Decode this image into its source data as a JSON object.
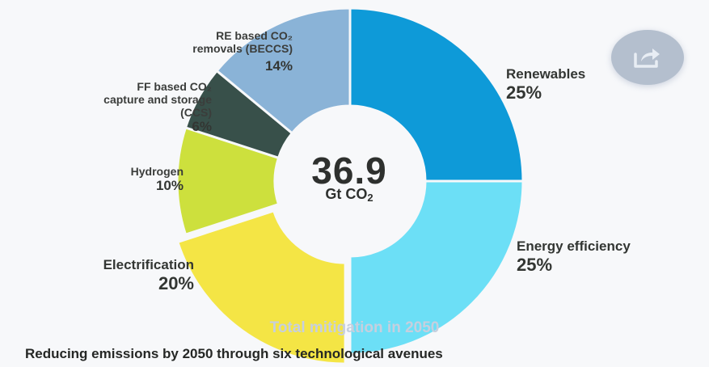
{
  "chart_data": {
    "type": "pie",
    "variant": "donut",
    "title": "Total mitigation in 2050",
    "caption": "Reducing emissions by 2050 through six technological avenues",
    "center": {
      "value": "36.9",
      "unit_prefix": "Gt CO",
      "unit_sub": "2"
    },
    "slices": [
      {
        "key": "renewables",
        "label": "Renewables",
        "value": 25,
        "pct_label": "25%",
        "color": "#0e9ad8",
        "exploded": false
      },
      {
        "key": "energy-efficiency",
        "label": "Energy efficiency",
        "value": 25,
        "pct_label": "25%",
        "color": "#6cdff6",
        "exploded": false
      },
      {
        "key": "electrification",
        "label": "Electrification",
        "value": 20,
        "pct_label": "20%",
        "color": "#f4e545",
        "exploded": true
      },
      {
        "key": "hydrogen",
        "label": "Hydrogen",
        "value": 10,
        "pct_label": "10%",
        "color": "#cde03d",
        "exploded": false
      },
      {
        "key": "ccs",
        "label_lines": [
          "FF based CO₂",
          "capture and storage",
          "(CCS)"
        ],
        "label": "FF based CO2 capture and storage (CCS)",
        "value": 6,
        "pct_label": "6%",
        "color": "#38504a",
        "exploded": false
      },
      {
        "key": "beccs",
        "label_lines": [
          "RE based CO₂",
          "removals (BECCS)"
        ],
        "label": "RE based CO2 removals (BECCS)",
        "value": 14,
        "pct_label": "14%",
        "color": "#8ab3d7",
        "exploded": false
      }
    ]
  },
  "share": {
    "icon": "share-icon"
  }
}
